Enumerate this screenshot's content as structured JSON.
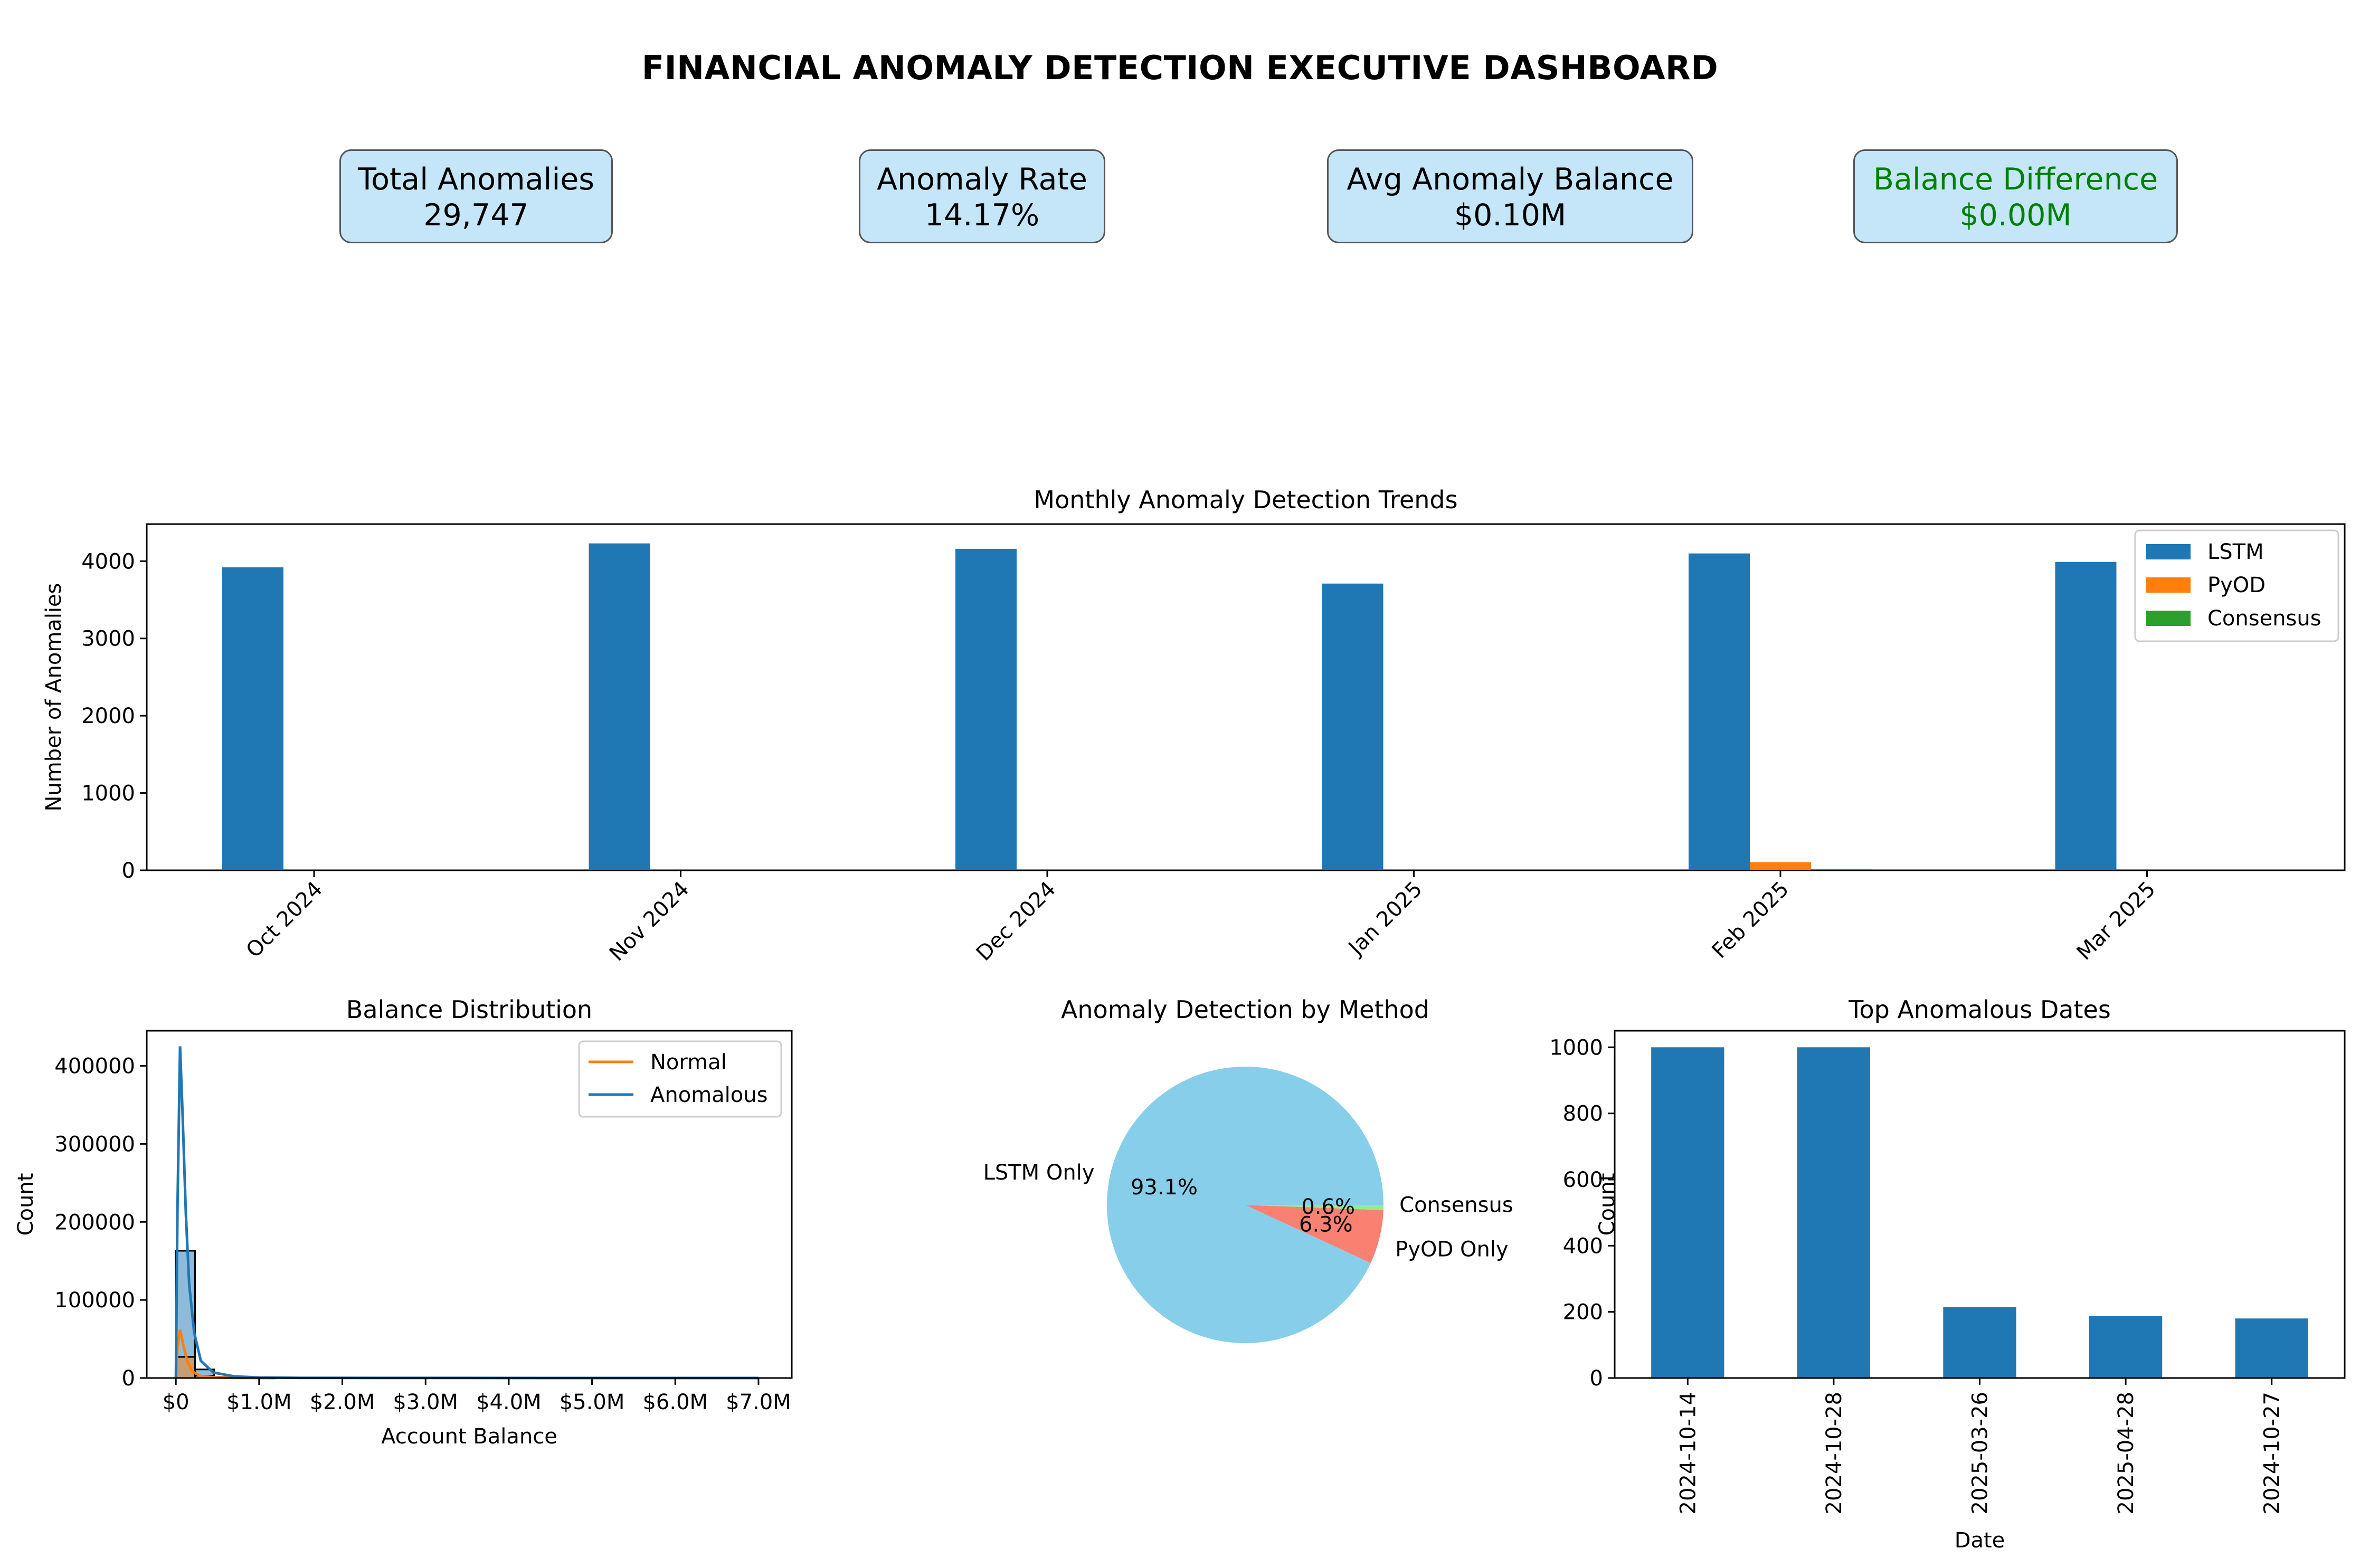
{
  "title": "FINANCIAL ANOMALY DETECTION EXECUTIVE DASHBOARD",
  "kpis": [
    {
      "label": "Total Anomalies",
      "value": "29,747",
      "color": "#000000"
    },
    {
      "label": "Anomaly Rate",
      "value": "14.17%",
      "color": "#000000"
    },
    {
      "label": "Avg Anomaly Balance",
      "value": "$0.10M",
      "color": "#000000"
    },
    {
      "label": "Balance Difference",
      "value": "$0.00M",
      "color": "#008000"
    }
  ],
  "colors": {
    "lstm": "#1f77b4",
    "pyod": "#ff7f0e",
    "consensus": "#2ca02c",
    "pie_lstm": "#87ceeb",
    "pie_pyod": "#fa8072",
    "pie_consensus": "#90ee90",
    "kpi_bg": "#c5e6f9"
  },
  "chart_data": [
    {
      "type": "bar",
      "title": "Monthly Anomaly Detection Trends",
      "xlabel": "",
      "ylabel": "Number of Anomalies",
      "categories": [
        "Oct 2024",
        "Nov 2024",
        "Dec 2024",
        "Jan 2025",
        "Feb 2025",
        "Mar 2025"
      ],
      "series": [
        {
          "name": "LSTM",
          "values": [
            3920,
            4230,
            4160,
            3710,
            4100,
            3990
          ]
        },
        {
          "name": "PyOD",
          "values": [
            0,
            0,
            0,
            0,
            105,
            0
          ]
        },
        {
          "name": "Consensus",
          "values": [
            0,
            0,
            0,
            0,
            15,
            0
          ]
        }
      ],
      "yticks": [
        0,
        1000,
        2000,
        3000,
        4000
      ],
      "ylim": [
        0,
        4480
      ],
      "legend": "top-right"
    },
    {
      "type": "histogram",
      "title": "Balance Distribution",
      "xlabel": "Account Balance",
      "ylabel": "Count",
      "xticks": [
        "$0",
        "$1.0M",
        "$2.0M",
        "$3.0M",
        "$4.0M",
        "$5.0M",
        "$6.0M",
        "$7.0M"
      ],
      "yticks": [
        "0",
        "100000",
        "200000",
        "300000",
        "400000"
      ],
      "xlim": [
        -0.35,
        7.4
      ],
      "ylim": [
        0,
        445000
      ],
      "bin_width": 0.23,
      "series": [
        {
          "name": "Anomalous",
          "bins": [
            0,
            0.23,
            0.46,
            0.69
          ],
          "counts": [
            163000,
            11000,
            1500,
            300
          ],
          "kde_x": [
            0,
            0.02,
            0.05,
            0.08,
            0.12,
            0.16,
            0.22,
            0.3,
            0.45,
            0.7,
            1.0,
            1.5,
            2.5,
            7.0
          ],
          "kde_y": [
            0,
            220000,
            425000,
            340000,
            210000,
            120000,
            58000,
            22000,
            7000,
            2000,
            700,
            200,
            50,
            0
          ]
        },
        {
          "name": "Normal",
          "bins": [
            0,
            0.23,
            0.46
          ],
          "counts": [
            27000,
            3000,
            300
          ],
          "kde_x": [
            0,
            0.02,
            0.05,
            0.09,
            0.14,
            0.2,
            0.3,
            0.5,
            0.8,
            1.2
          ],
          "kde_y": [
            0,
            40000,
            62000,
            42000,
            20000,
            8000,
            2500,
            600,
            100,
            0
          ]
        }
      ],
      "legend": "top-right"
    },
    {
      "type": "pie",
      "title": "Anomaly Detection by Method",
      "slices": [
        {
          "label": "LSTM Only",
          "value": 93.1,
          "pct_label": "93.1%"
        },
        {
          "label": "PyOD Only",
          "value": 6.3,
          "pct_label": "6.3%"
        },
        {
          "label": "Consensus",
          "value": 0.6,
          "pct_label": "0.6%"
        }
      ]
    },
    {
      "type": "bar",
      "title": "Top Anomalous Dates",
      "xlabel": "Date",
      "ylabel": "Count",
      "categories": [
        "2024-10-14",
        "2024-10-28",
        "2025-03-26",
        "2025-04-28",
        "2024-10-27"
      ],
      "values": [
        1000,
        1000,
        215,
        188,
        180
      ],
      "yticks": [
        0,
        200,
        400,
        600,
        800,
        1000
      ],
      "ylim": [
        0,
        1050
      ]
    }
  ]
}
